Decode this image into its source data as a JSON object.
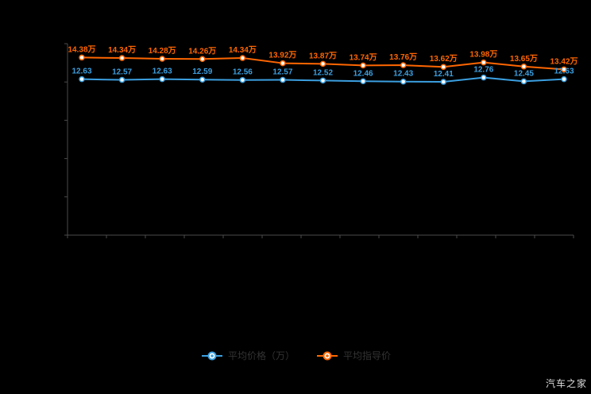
{
  "watermark": "汽车之家",
  "colors": {
    "background": "#000000",
    "axis": "#4a4a4a",
    "orange": "#ff6600",
    "blue": "#3b9fe0",
    "legend_text": "#333333",
    "watermark_text": "#dcdcdc",
    "marker_fill": "#ffffff"
  },
  "legend": [
    {
      "label": "平均价格（万）",
      "color": "#3b9fe0"
    },
    {
      "label": "平均指导价",
      "color": "#ff6600"
    }
  ],
  "chart_data": {
    "type": "line",
    "title": "",
    "xlabel": "",
    "ylabel": "",
    "ylim": [
      0,
      15.5
    ],
    "grid": false,
    "legend_position": "bottom",
    "categories": [
      "",
      "",
      "",
      "",
      "",
      "",
      "",
      "",
      "",
      "",
      "",
      "",
      ""
    ],
    "series": [
      {
        "name": "平均指导价",
        "color": "#ff6600",
        "unit": "万",
        "values": [
          14.38,
          14.34,
          14.28,
          14.26,
          14.34,
          13.92,
          13.87,
          13.74,
          13.76,
          13.62,
          13.98,
          13.65,
          13.42
        ],
        "labels": [
          "14.38万",
          "14.34万",
          "14.28万",
          "14.26万",
          "14.34万",
          "13.92万",
          "13.87万",
          "13.74万",
          "13.76万",
          "13.62万",
          "13.98万",
          "13.65万",
          "13.42万"
        ]
      },
      {
        "name": "平均价格（万）",
        "color": "#3b9fe0",
        "unit": "万",
        "values": [
          12.63,
          12.57,
          12.63,
          12.59,
          12.56,
          12.57,
          12.52,
          12.46,
          12.43,
          12.41,
          12.76,
          12.45,
          12.63
        ],
        "labels": [
          "12.63",
          "12.57",
          "12.63",
          "12.59",
          "12.56",
          "12.57",
          "12.52",
          "12.46",
          "12.43",
          "12.41",
          "12.76",
          "12.45",
          "12.63"
        ]
      }
    ]
  }
}
